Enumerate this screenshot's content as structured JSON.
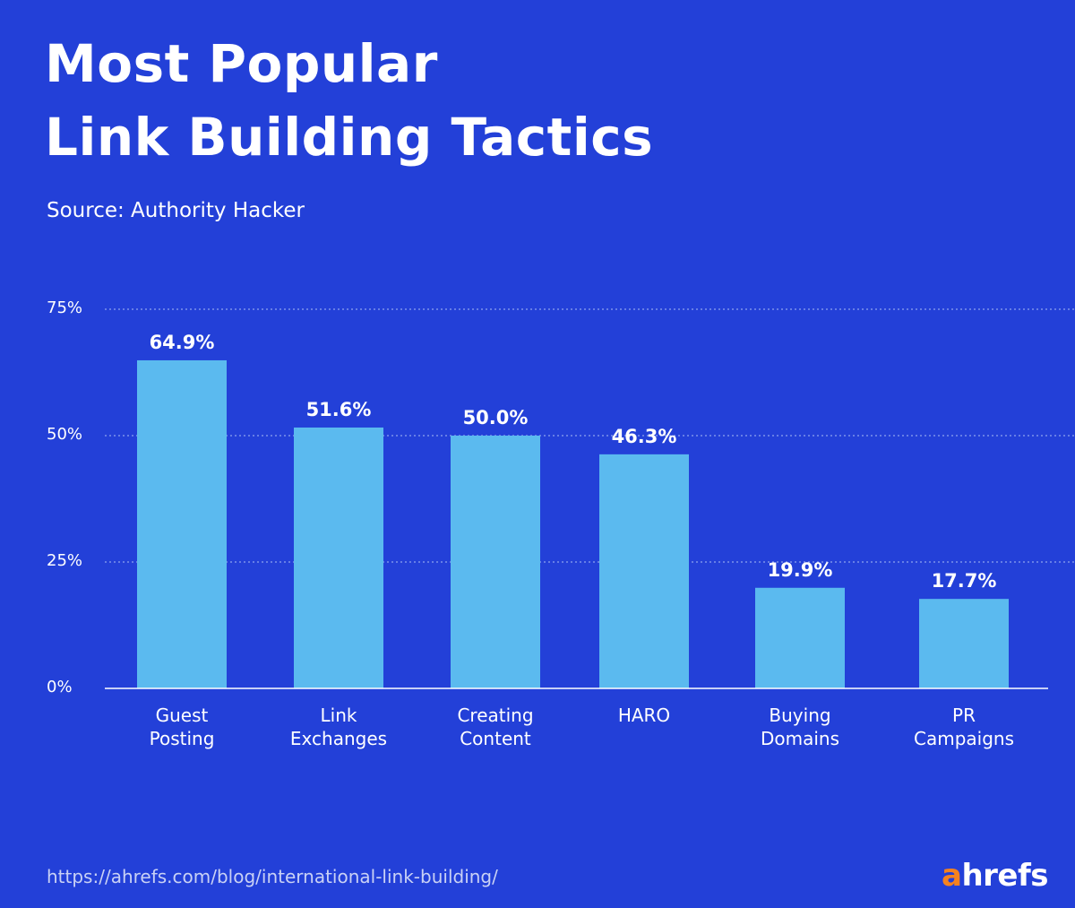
{
  "header": {
    "title_line1": "Most Popular",
    "title_line2": "Link Building Tactics",
    "subtitle": "Source: Authority Hacker"
  },
  "footer": {
    "url": "https://ahrefs.com/blog/international-link-building/",
    "logo_first": "a",
    "logo_rest": "hrefs"
  },
  "colors": {
    "background": "#2340d8",
    "bar": "#5bbaef",
    "text": "#ffffff",
    "grid": "#8fa2ee",
    "logo_accent": "#f5821f"
  },
  "chart_data": {
    "type": "bar",
    "title": "Most Popular Link Building Tactics",
    "subtitle": "Source: Authority Hacker",
    "xlabel": "",
    "ylabel": "",
    "ylim": [
      0,
      75
    ],
    "yticks": [
      0,
      25,
      50,
      75
    ],
    "ytick_labels": [
      "0%",
      "25%",
      "50%",
      "75%"
    ],
    "grid": true,
    "categories": [
      [
        "Guest",
        "Posting"
      ],
      [
        "Link",
        "Exchanges"
      ],
      [
        "Creating",
        "Content"
      ],
      [
        "HARO"
      ],
      [
        "Buying",
        "Domains"
      ],
      [
        "PR",
        "Campaigns"
      ]
    ],
    "values": [
      64.9,
      51.6,
      50.0,
      46.3,
      19.9,
      17.7
    ],
    "value_labels": [
      "64.9%",
      "51.6%",
      "50.0%",
      "46.3%",
      "19.9%",
      "17.7%"
    ]
  }
}
